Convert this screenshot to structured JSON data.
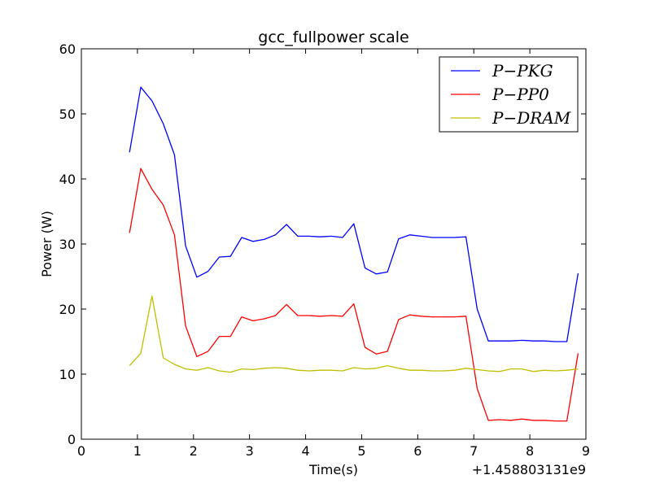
{
  "chart_data": {
    "type": "line",
    "title": "gcc_fullpower scale",
    "xlabel": "Time(s)",
    "ylabel": "Power (W)",
    "x_offset_label": "+1.458803131e9",
    "xlim": [
      0,
      9
    ],
    "ylim": [
      0,
      60
    ],
    "xticks": [
      0,
      1,
      2,
      3,
      4,
      5,
      6,
      7,
      8,
      9
    ],
    "yticks": [
      0,
      10,
      20,
      30,
      40,
      50,
      60
    ],
    "grid": false,
    "legend_position": "top-right",
    "x": [
      0.86,
      1.06,
      1.26,
      1.46,
      1.66,
      1.86,
      2.06,
      2.26,
      2.46,
      2.66,
      2.86,
      3.06,
      3.26,
      3.46,
      3.66,
      3.86,
      4.06,
      4.26,
      4.46,
      4.66,
      4.86,
      5.06,
      5.26,
      5.46,
      5.66,
      5.86,
      6.06,
      6.26,
      6.46,
      6.66,
      6.86,
      7.06,
      7.26,
      7.46,
      7.66,
      7.86,
      8.06,
      8.26,
      8.46,
      8.66,
      8.86
    ],
    "series": [
      {
        "name": "P−PKG",
        "color": "#0000ff",
        "values": [
          44.1,
          54.1,
          52.0,
          48.5,
          43.7,
          29.7,
          24.9,
          25.8,
          28.0,
          28.1,
          31.0,
          30.4,
          30.7,
          31.4,
          33.0,
          31.2,
          31.2,
          31.1,
          31.2,
          31.0,
          33.1,
          26.3,
          25.4,
          25.7,
          30.8,
          31.4,
          31.2,
          31.0,
          31.0,
          31.0,
          31.1,
          20.0,
          15.1,
          15.1,
          15.1,
          15.2,
          15.1,
          15.1,
          15.0,
          15.0,
          25.5
        ]
      },
      {
        "name": "P−PP0",
        "color": "#ff0000",
        "values": [
          31.7,
          41.6,
          38.4,
          36.0,
          31.4,
          17.4,
          12.7,
          13.5,
          15.8,
          15.8,
          18.8,
          18.2,
          18.5,
          19.0,
          20.7,
          19.0,
          19.0,
          18.9,
          19.0,
          18.9,
          20.8,
          14.1,
          13.1,
          13.5,
          18.4,
          19.1,
          18.9,
          18.8,
          18.8,
          18.8,
          18.9,
          7.8,
          2.9,
          3.0,
          2.9,
          3.1,
          2.9,
          2.9,
          2.8,
          2.8,
          13.2
        ]
      },
      {
        "name": "P−DRAM",
        "color": "#bfbf00",
        "values": [
          11.3,
          13.2,
          22.0,
          12.5,
          11.5,
          10.8,
          10.6,
          11.0,
          10.5,
          10.3,
          10.8,
          10.7,
          10.9,
          11.0,
          10.9,
          10.6,
          10.5,
          10.6,
          10.6,
          10.5,
          11.0,
          10.8,
          10.9,
          11.3,
          10.9,
          10.6,
          10.6,
          10.5,
          10.5,
          10.6,
          10.9,
          10.7,
          10.5,
          10.4,
          10.8,
          10.8,
          10.4,
          10.6,
          10.5,
          10.6,
          10.8
        ]
      }
    ]
  }
}
